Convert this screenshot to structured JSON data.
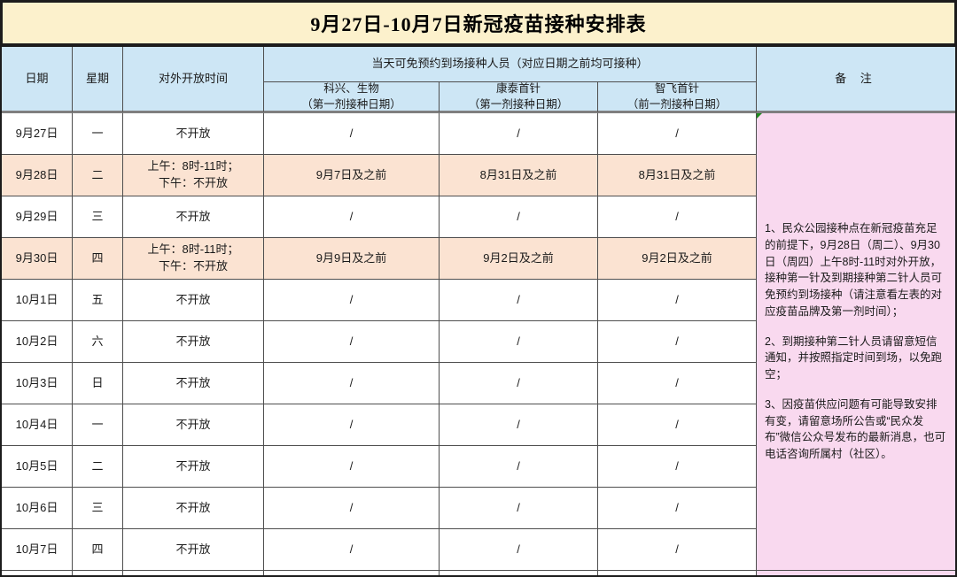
{
  "title": "9月27日-10月7日新冠疫苗接种安排表",
  "header": {
    "date": "日期",
    "weekday": "星期",
    "open_time": "对外开放时间",
    "walkin_merged": "当天可免预约到场接种人员（对应日期之前均可接种）",
    "sub_columns": [
      {
        "name": "科兴、生物",
        "note": "（第一剂接种日期）"
      },
      {
        "name": "康泰首针",
        "note": "（第一剂接种日期）"
      },
      {
        "name": "智飞首针",
        "note": "（前一剂接种日期）"
      }
    ],
    "remarks": "备 注"
  },
  "rows": [
    {
      "date": "9月27日",
      "weekday": "一",
      "open_time": "不开放",
      "kexing_shengwu": "/",
      "kangtai": "/",
      "zhifei": "/",
      "highlight": false
    },
    {
      "date": "9月28日",
      "weekday": "二",
      "open_time": "上午：8时-11时；\n下午：不开放",
      "kexing_shengwu": "9月7日及之前",
      "kangtai": "8月31日及之前",
      "zhifei": "8月31日及之前",
      "highlight": true
    },
    {
      "date": "9月29日",
      "weekday": "三",
      "open_time": "不开放",
      "kexing_shengwu": "/",
      "kangtai": "/",
      "zhifei": "/",
      "highlight": false
    },
    {
      "date": "9月30日",
      "weekday": "四",
      "open_time": "上午：8时-11时；\n下午：不开放",
      "kexing_shengwu": "9月9日及之前",
      "kangtai": "9月2日及之前",
      "zhifei": "9月2日及之前",
      "highlight": true
    },
    {
      "date": "10月1日",
      "weekday": "五",
      "open_time": "不开放",
      "kexing_shengwu": "/",
      "kangtai": "/",
      "zhifei": "/",
      "highlight": false
    },
    {
      "date": "10月2日",
      "weekday": "六",
      "open_time": "不开放",
      "kexing_shengwu": "/",
      "kangtai": "/",
      "zhifei": "/",
      "highlight": false
    },
    {
      "date": "10月3日",
      "weekday": "日",
      "open_time": "不开放",
      "kexing_shengwu": "/",
      "kangtai": "/",
      "zhifei": "/",
      "highlight": false
    },
    {
      "date": "10月4日",
      "weekday": "一",
      "open_time": "不开放",
      "kexing_shengwu": "/",
      "kangtai": "/",
      "zhifei": "/",
      "highlight": false
    },
    {
      "date": "10月5日",
      "weekday": "二",
      "open_time": "不开放",
      "kexing_shengwu": "/",
      "kangtai": "/",
      "zhifei": "/",
      "highlight": false
    },
    {
      "date": "10月6日",
      "weekday": "三",
      "open_time": "不开放",
      "kexing_shengwu": "/",
      "kangtai": "/",
      "zhifei": "/",
      "highlight": false
    },
    {
      "date": "10月7日",
      "weekday": "四",
      "open_time": "不开放",
      "kexing_shengwu": "/",
      "kangtai": "/",
      "zhifei": "/",
      "highlight": false
    }
  ],
  "remarks": {
    "notes": [
      "1、民众公园接种点在新冠疫苗充足的前提下，9月28日（周二）、9月30日（周四）上午8时-11时对外开放，接种第一针及到期接种第二针人员可免预约到场接种（请注意看左表的对应疫苗品牌及第一剂时间）；",
      "2、到期接种第二针人员请留意短信通知，并按照指定时间到场，以免跑空；",
      "3、因疫苗供应问题有可能导致安排有变，请留意场所公告或“民众发布”微信公众号发布的最新消息，也可电话咨询所属村（社区）。"
    ]
  },
  "colors": {
    "title_bg": "#FCF1CC",
    "header_bg": "#CDE6F5",
    "highlight_bg": "#FBE3D2",
    "remarks_bg": "#F9D9EF",
    "grid_line": "#4e4e4e",
    "outer_border": "#1c1c1c",
    "header_divider": "#7f7f7f",
    "marker_green": "#1e8a1e"
  }
}
